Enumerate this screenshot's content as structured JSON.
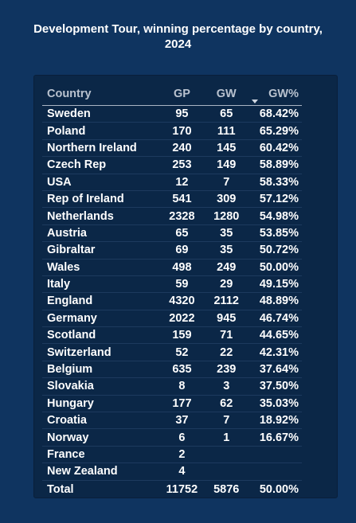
{
  "title": "Development Tour, winning percentage by country, 2024",
  "table": {
    "columns": {
      "country": "Country",
      "gp": "GP",
      "gw": "GW",
      "pct": "GW%"
    },
    "sort": {
      "column": "GW%",
      "direction": "descending",
      "icon": "sort-descending-icon"
    },
    "rows": [
      {
        "country": "Sweden",
        "gp": "95",
        "gw": "65",
        "pct": "68.42%"
      },
      {
        "country": "Poland",
        "gp": "170",
        "gw": "111",
        "pct": "65.29%"
      },
      {
        "country": "Northern Ireland",
        "gp": "240",
        "gw": "145",
        "pct": "60.42%"
      },
      {
        "country": "Czech Rep",
        "gp": "253",
        "gw": "149",
        "pct": "58.89%"
      },
      {
        "country": "USA",
        "gp": "12",
        "gw": "7",
        "pct": "58.33%"
      },
      {
        "country": "Rep of Ireland",
        "gp": "541",
        "gw": "309",
        "pct": "57.12%"
      },
      {
        "country": "Netherlands",
        "gp": "2328",
        "gw": "1280",
        "pct": "54.98%"
      },
      {
        "country": "Austria",
        "gp": "65",
        "gw": "35",
        "pct": "53.85%"
      },
      {
        "country": "Gibraltar",
        "gp": "69",
        "gw": "35",
        "pct": "50.72%"
      },
      {
        "country": "Wales",
        "gp": "498",
        "gw": "249",
        "pct": "50.00%"
      },
      {
        "country": "Italy",
        "gp": "59",
        "gw": "29",
        "pct": "49.15%"
      },
      {
        "country": "England",
        "gp": "4320",
        "gw": "2112",
        "pct": "48.89%"
      },
      {
        "country": "Germany",
        "gp": "2022",
        "gw": "945",
        "pct": "46.74%"
      },
      {
        "country": "Scotland",
        "gp": "159",
        "gw": "71",
        "pct": "44.65%"
      },
      {
        "country": "Switzerland",
        "gp": "52",
        "gw": "22",
        "pct": "42.31%"
      },
      {
        "country": "Belgium",
        "gp": "635",
        "gw": "239",
        "pct": "37.64%"
      },
      {
        "country": "Slovakia",
        "gp": "8",
        "gw": "3",
        "pct": "37.50%"
      },
      {
        "country": "Hungary",
        "gp": "177",
        "gw": "62",
        "pct": "35.03%"
      },
      {
        "country": "Croatia",
        "gp": "37",
        "gw": "7",
        "pct": "18.92%"
      },
      {
        "country": "Norway",
        "gp": "6",
        "gw": "1",
        "pct": "16.67%"
      },
      {
        "country": "France",
        "gp": "2",
        "gw": "",
        "pct": ""
      },
      {
        "country": "New Zealand",
        "gp": "4",
        "gw": "",
        "pct": ""
      }
    ],
    "total": {
      "label": "Total",
      "gp": "11752",
      "gw": "5876",
      "pct": "50.00%"
    }
  },
  "colors": {
    "background": "#0f3460",
    "panel": "#0b2747",
    "header_text": "#b9c2cf",
    "text": "#ffffff"
  }
}
